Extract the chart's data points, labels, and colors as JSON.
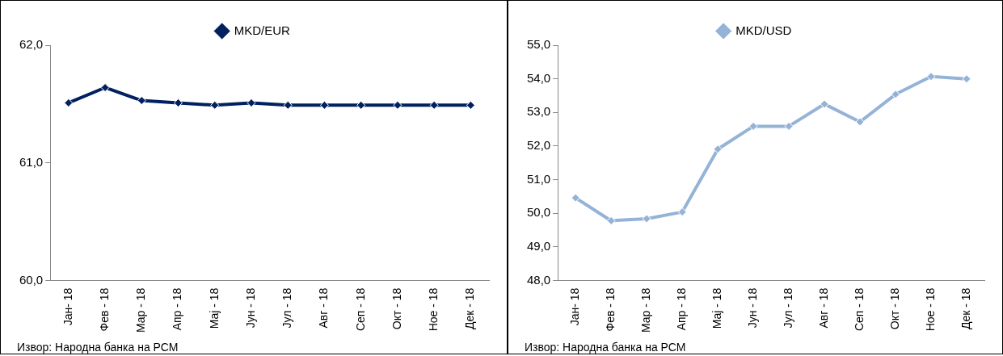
{
  "chart_data": [
    {
      "type": "line",
      "categories": [
        "Јан- 18",
        "Фев - 18",
        "Мар - 18",
        "Апр - 18",
        "Мај - 18",
        "Јун - 18",
        "Јул - 18",
        "Авг - 18",
        "Сеп - 18",
        "Окт - 18",
        "Ное - 18",
        "Дек - 18"
      ],
      "series": [
        {
          "name": "MKD/EUR",
          "color": "#002060",
          "values": [
            61.51,
            61.64,
            61.53,
            61.51,
            61.49,
            61.51,
            61.49,
            61.49,
            61.49,
            61.49,
            61.49,
            61.49
          ]
        }
      ],
      "ylim": [
        60,
        62
      ],
      "yticks": [
        {
          "value": 60,
          "label": "60,0"
        },
        {
          "value": 61,
          "label": "61,0"
        },
        {
          "value": 62,
          "label": "62,0"
        }
      ],
      "marker": "diamond",
      "legend": "top",
      "grid": false,
      "annotations": [
        "Извор: Народна банка на РСМ"
      ]
    },
    {
      "type": "line",
      "categories": [
        "Јан- 18",
        "Фев - 18",
        "Мар - 18",
        "Апр - 18",
        "Мај - 18",
        "Јун - 18",
        "Јул - 18",
        "Авг - 18",
        "Сеп - 18",
        "Окт - 18",
        "Ное - 18",
        "Дек - 18"
      ],
      "series": [
        {
          "name": "MKD/USD",
          "color": "#95b3d7",
          "values": [
            50.46,
            49.78,
            49.84,
            50.04,
            51.91,
            52.59,
            52.59,
            53.25,
            52.72,
            53.54,
            54.07,
            54.0
          ]
        }
      ],
      "ylim": [
        48,
        55
      ],
      "yticks": [
        {
          "value": 48,
          "label": "48,0"
        },
        {
          "value": 49,
          "label": "49,0"
        },
        {
          "value": 50,
          "label": "50,0"
        },
        {
          "value": 51,
          "label": "51,0"
        },
        {
          "value": 52,
          "label": "52,0"
        },
        {
          "value": 53,
          "label": "53,0"
        },
        {
          "value": 54,
          "label": "54,0"
        },
        {
          "value": 55,
          "label": "55,0"
        }
      ],
      "marker": "diamond",
      "legend": "top",
      "grid": false,
      "annotations": [
        "Извор: Народна банка на РСМ"
      ]
    }
  ]
}
